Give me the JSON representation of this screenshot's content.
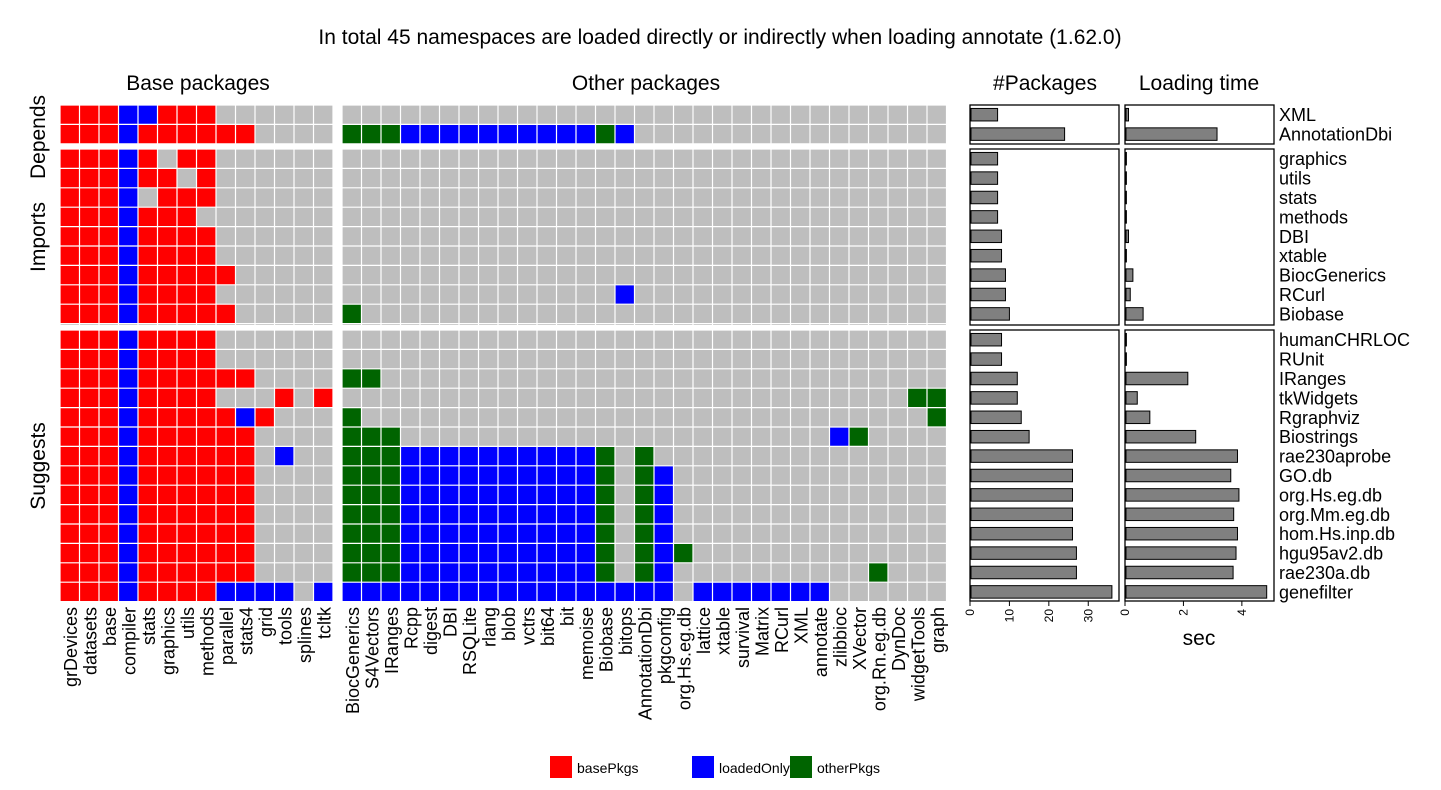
{
  "chart_data": {
    "type": "heatmap",
    "title": "In total 45 namespaces are loaded directly or indirectly when loading annotate (1.62.0)",
    "column_groups": [
      "Base packages",
      "Other packages"
    ],
    "row_groups": [
      "Depends",
      "Imports",
      "Suggests"
    ],
    "base_columns": [
      "grDevices",
      "datasets",
      "base",
      "compiler",
      "stats",
      "graphics",
      "utils",
      "methods",
      "parallel",
      "stats4",
      "grid",
      "tools",
      "splines",
      "tcltk"
    ],
    "other_columns": [
      "BiocGenerics",
      "S4Vectors",
      "IRanges",
      "Rcpp",
      "digest",
      "DBI",
      "RSQLite",
      "rlang",
      "blob",
      "vctrs",
      "bit64",
      "bit",
      "memoise",
      "Biobase",
      "bitops",
      "AnnotationDbi",
      "pkgconfig",
      "org.Hs.eg.db",
      "lattice",
      "xtable",
      "survival",
      "Matrix",
      "RCurl",
      "XML",
      "annotate",
      "zlibbioc",
      "XVector",
      "org.Rn.eg.db",
      "DynDoc",
      "widgetTools",
      "graph"
    ],
    "rows": [
      {
        "name": "XML",
        "group": "Depends",
        "packages": 7,
        "time": 0.12,
        "base": "bbbllbbb......",
        "other": "..............................."
      },
      {
        "name": "AnnotationDbi",
        "group": "Depends",
        "packages": 24,
        "time": 3.15,
        "base": "bbblbbbbbb....",
        "other": "oooeeeeeeeeeeoe................"
      },
      {
        "name": "graphics",
        "group": "Imports",
        "packages": 7,
        "time": 0.01,
        "base": "bbblb.bb......",
        "other": "..............................."
      },
      {
        "name": "utils",
        "group": "Imports",
        "packages": 7,
        "time": 0.01,
        "base": "bbblbb.b......",
        "other": "..............................."
      },
      {
        "name": "stats",
        "group": "Imports",
        "packages": 7,
        "time": 0.01,
        "base": "bbbl.bbb......",
        "other": "..............................."
      },
      {
        "name": "methods",
        "group": "Imports",
        "packages": 7,
        "time": 0.01,
        "base": "bbblbbb.......",
        "other": "..............................."
      },
      {
        "name": "DBI",
        "group": "Imports",
        "packages": 8,
        "time": 0.12,
        "base": "bbblbbbb......",
        "other": "..............................."
      },
      {
        "name": "xtable",
        "group": "Imports",
        "packages": 8,
        "time": 0.03,
        "base": "bbblbbbb......",
        "other": "..............................."
      },
      {
        "name": "BiocGenerics",
        "group": "Imports",
        "packages": 9,
        "time": 0.27,
        "base": "bbblbbbbb.....",
        "other": "..............................."
      },
      {
        "name": "RCurl",
        "group": "Imports",
        "packages": 9,
        "time": 0.18,
        "base": "bbblbbbb......",
        "other": "..............l................"
      },
      {
        "name": "Biobase",
        "group": "Imports",
        "packages": 10,
        "time": 0.62,
        "base": "bbblbbbbb.....",
        "other": "o.............................."
      },
      {
        "name": "humanCHRLOC",
        "group": "Suggests",
        "packages": 8,
        "time": 0.03,
        "base": "bbblbbbb......",
        "other": "..............................."
      },
      {
        "name": "RUnit",
        "group": "Suggests",
        "packages": 8,
        "time": 0.03,
        "base": "bbblbbbb......",
        "other": "..............................."
      },
      {
        "name": "IRanges",
        "group": "Suggests",
        "packages": 12,
        "time": 2.15,
        "base": "bbblbbbbbb....",
        "other": "oo............................."
      },
      {
        "name": "tkWidgets",
        "group": "Suggests",
        "packages": 12,
        "time": 0.42,
        "base": "bbblbbbb...b.b",
        "other": ".............................oo"
      },
      {
        "name": "Rgraphviz",
        "group": "Suggests",
        "packages": 13,
        "time": 0.85,
        "base": "bbblbbbbblb...",
        "other": "o.............................o"
      },
      {
        "name": "Biostrings",
        "group": "Suggests",
        "packages": 15,
        "time": 2.42,
        "base": "bbblbbbbbb....",
        "other": "ooo......................lo...."
      },
      {
        "name": "rae230aprobe",
        "group": "Suggests",
        "packages": 26,
        "time": 3.85,
        "base": "bbblbbbbbb.l..",
        "other": "oooeeeeeeeeeeo.o..............."
      },
      {
        "name": "GO.db",
        "group": "Suggests",
        "packages": 26,
        "time": 3.62,
        "base": "bbblbbbbbb....",
        "other": "oooeeeeeeeeeeo.ol.............."
      },
      {
        "name": "org.Hs.eg.db",
        "group": "Suggests",
        "packages": 26,
        "time": 3.9,
        "base": "bbblbbbbbb....",
        "other": "oooeeeeeeeeeeo.ol.............."
      },
      {
        "name": "org.Mm.eg.db",
        "group": "Suggests",
        "packages": 26,
        "time": 3.72,
        "base": "bbblbbbbbb....",
        "other": "oooeeeeeeeeeeo.ol.............."
      },
      {
        "name": "hom.Hs.inp.db",
        "group": "Suggests",
        "packages": 26,
        "time": 3.85,
        "base": "bbblbbbbbb....",
        "other": "oooeeeeeeeeeeo.ol.............."
      },
      {
        "name": "hgu95av2.db",
        "group": "Suggests",
        "packages": 27,
        "time": 3.8,
        "base": "bbblbbbbbb....",
        "other": "oooeeeeeeeeeeo.olo............."
      },
      {
        "name": "rae230a.db",
        "group": "Suggests",
        "packages": 27,
        "time": 3.7,
        "base": "bbblbbbbbb....",
        "other": "oooeeeeeeeeeeo.ol..........o..."
      },
      {
        "name": "genefilter",
        "group": "Suggests",
        "packages": 36,
        "time": 4.85,
        "base": "bbblbbbbllll.l",
        "other": "lllllllllllllllll.lllllll......"
      }
    ],
    "legend": [
      {
        "label": "basePkgs",
        "color": "#ff0000"
      },
      {
        "label": "loadedOnly",
        "color": "#0000ff"
      },
      {
        "label": "otherPkgs",
        "color": "#006400"
      }
    ],
    "legend_position": "bottom",
    "empty_color": "#bebebe",
    "panels": {
      "packages": {
        "title": "#Packages",
        "xlim": [
          0,
          37.8
        ],
        "ticks": [
          0,
          10,
          20,
          30
        ],
        "xlabel": ""
      },
      "time": {
        "title": "Loading time",
        "xlim": [
          0,
          5.1
        ],
        "ticks": [
          0,
          2,
          4
        ],
        "xlabel": "sec"
      }
    },
    "bar_color": "#808080"
  }
}
